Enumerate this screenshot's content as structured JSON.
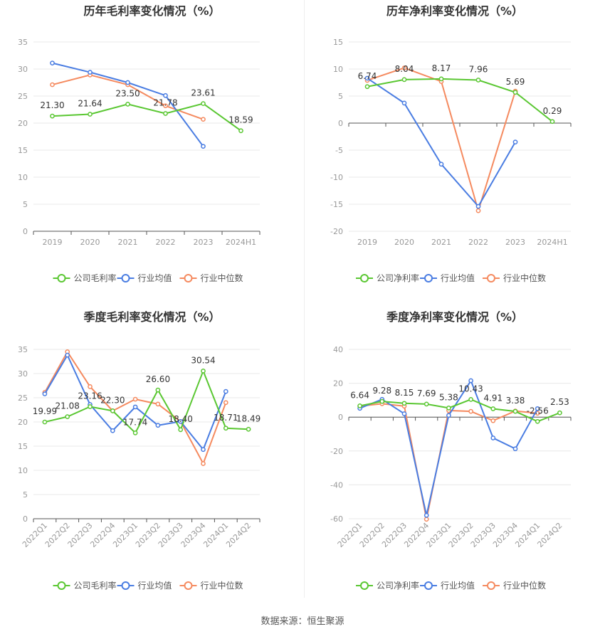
{
  "source": "数据来源：恒生聚源",
  "colors": {
    "company": "#5ac732",
    "industry_avg": "#4a7de2",
    "industry_median": "#f58a5f"
  },
  "chart_data": [
    {
      "type": "line",
      "title": "历年毛利率变化情况（%）",
      "categories": [
        "2019",
        "2020",
        "2021",
        "2022",
        "2023",
        "2024H1"
      ],
      "ylim": [
        0,
        35
      ],
      "yticks": [
        0,
        5,
        10,
        15,
        20,
        25,
        30,
        35
      ],
      "series": [
        {
          "name": "公司毛利率",
          "values": [
            21.3,
            21.64,
            23.5,
            21.78,
            23.61,
            18.59
          ],
          "labels": [
            "21.30",
            "21.64",
            "23.50",
            "21.78",
            "23.61",
            "18.59"
          ]
        },
        {
          "name": "行业均值",
          "values": [
            31.1,
            29.4,
            27.5,
            25.1,
            15.7,
            null
          ]
        },
        {
          "name": "行业中位数",
          "values": [
            27.1,
            28.9,
            27.1,
            23.2,
            20.7,
            null
          ]
        }
      ]
    },
    {
      "type": "line",
      "title": "历年净利率变化情况（%）",
      "categories": [
        "2019",
        "2020",
        "2021",
        "2022",
        "2023",
        "2024H1"
      ],
      "ylim": [
        -20,
        15
      ],
      "yticks": [
        -20,
        -15,
        -10,
        -5,
        0,
        5,
        10,
        15
      ],
      "series": [
        {
          "name": "公司净利率",
          "values": [
            6.74,
            8.04,
            8.17,
            7.96,
            5.69,
            0.29
          ],
          "labels": [
            "6.74",
            "8.04",
            "8.17",
            "7.96",
            "5.69",
            "0.29"
          ]
        },
        {
          "name": "行业均值",
          "values": [
            8.3,
            3.7,
            -7.6,
            -15.4,
            -3.5,
            null
          ]
        },
        {
          "name": "行业中位数",
          "values": [
            7.9,
            10.2,
            7.7,
            -16.2,
            5.9,
            null
          ]
        }
      ]
    },
    {
      "type": "line",
      "title": "季度毛利率变化情况（%）",
      "categories": [
        "2022Q1",
        "2022Q2",
        "2022Q3",
        "2022Q4",
        "2023Q1",
        "2023Q2",
        "2023Q3",
        "2023Q4",
        "2024Q1",
        "2024Q2"
      ],
      "ylim": [
        0,
        35
      ],
      "yticks": [
        0,
        5,
        10,
        15,
        20,
        25,
        30,
        35
      ],
      "series": [
        {
          "name": "公司毛利率",
          "values": [
            19.99,
            21.08,
            23.16,
            22.3,
            17.74,
            26.6,
            18.4,
            30.54,
            18.71,
            18.49
          ],
          "labels": [
            "19.99",
            "21.08",
            "23.16",
            "22.30",
            "17.74",
            "26.60",
            "18.40",
            "30.54",
            "18.71",
            "18.49"
          ]
        },
        {
          "name": "行业均值",
          "values": [
            25.8,
            33.8,
            23.6,
            18.2,
            23.1,
            19.3,
            20.1,
            14.3,
            26.3,
            null
          ]
        },
        {
          "name": "行业中位数",
          "values": [
            26.1,
            34.5,
            27.3,
            22.3,
            24.7,
            23.7,
            20.1,
            11.4,
            24.0,
            null
          ]
        }
      ]
    },
    {
      "type": "line",
      "title": "季度净利率变化情况（%）",
      "categories": [
        "2022Q1",
        "2022Q2",
        "2022Q3",
        "2022Q4",
        "2023Q1",
        "2023Q2",
        "2023Q3",
        "2023Q4",
        "2024Q1",
        "2024Q2"
      ],
      "ylim": [
        -60,
        40
      ],
      "yticks": [
        -60,
        -40,
        -20,
        0,
        20,
        40
      ],
      "series": [
        {
          "name": "公司净利率",
          "values": [
            6.64,
            9.28,
            8.15,
            7.69,
            5.38,
            10.43,
            4.91,
            3.38,
            -2.56,
            2.53
          ],
          "labels": [
            "6.64",
            "9.28",
            "8.15",
            "7.69",
            "5.38",
            "10.43",
            "4.91",
            "3.38",
            "-2.56",
            "2.53"
          ]
        },
        {
          "name": "行业均值",
          "values": [
            5.2,
            10.5,
            2.0,
            -58.0,
            1.0,
            21.5,
            -12.3,
            -18.7,
            5.0,
            null
          ]
        },
        {
          "name": "行业中位数",
          "values": [
            6.5,
            7.9,
            6.5,
            -60.3,
            3.9,
            3.4,
            -2.1,
            3.6,
            2.3,
            null
          ]
        }
      ]
    }
  ]
}
